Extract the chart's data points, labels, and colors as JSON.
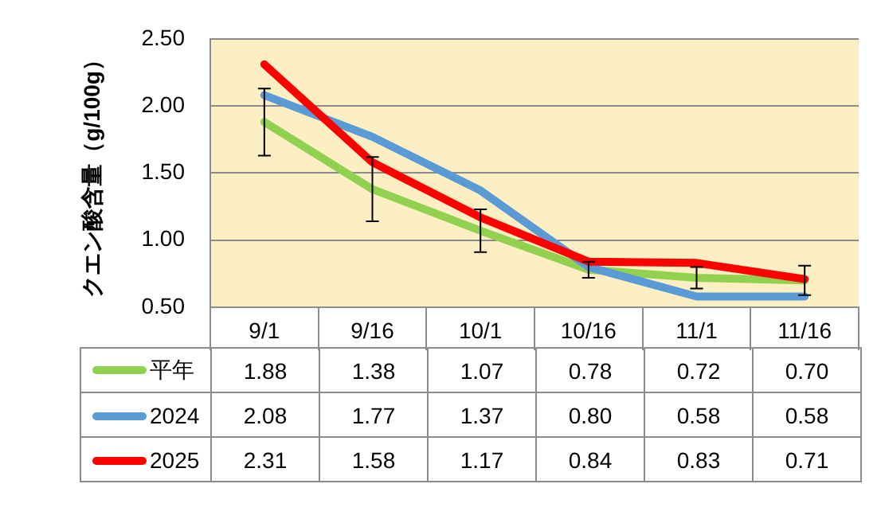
{
  "chart_data": {
    "type": "line",
    "ylabel": "クエン酸含量（g/100g）",
    "categories": [
      "9/1",
      "9/16",
      "10/1",
      "10/16",
      "11/1",
      "11/16"
    ],
    "ylim": [
      0.5,
      2.5
    ],
    "yticks": [
      {
        "value": 0.5,
        "label": "0.50"
      },
      {
        "value": 1,
        "label": "1.00"
      },
      {
        "value": 1.5,
        "label": "1.50"
      },
      {
        "value": 2,
        "label": "2.00"
      },
      {
        "value": 2.5,
        "label": "2.50"
      }
    ],
    "grid": "y",
    "legend": "bottom",
    "marker": "none",
    "line_style": "solid",
    "series": [
      {
        "name": "平年",
        "color": "#92d050",
        "values": [
          1.88,
          1.38,
          1.07,
          0.78,
          0.72,
          0.7
        ],
        "value_labels": [
          "1.88",
          "1.38",
          "1.07",
          "0.78",
          "0.72",
          "0.70"
        ],
        "errors": [
          0.25,
          0.24,
          0.16,
          0.06,
          0.08,
          0.11
        ]
      },
      {
        "name": "2024",
        "color": "#5b9bd5",
        "values": [
          2.08,
          1.77,
          1.37,
          0.8,
          0.58,
          0.58
        ],
        "value_labels": [
          "2.08",
          "1.77",
          "1.37",
          "0.80",
          "0.58",
          "0.58"
        ]
      },
      {
        "name": "2025",
        "color": "#ff0000",
        "values": [
          2.31,
          1.58,
          1.17,
          0.84,
          0.83,
          0.71
        ],
        "value_labels": [
          "2.31",
          "1.58",
          "1.17",
          "0.84",
          "0.83",
          "0.71"
        ]
      }
    ]
  }
}
